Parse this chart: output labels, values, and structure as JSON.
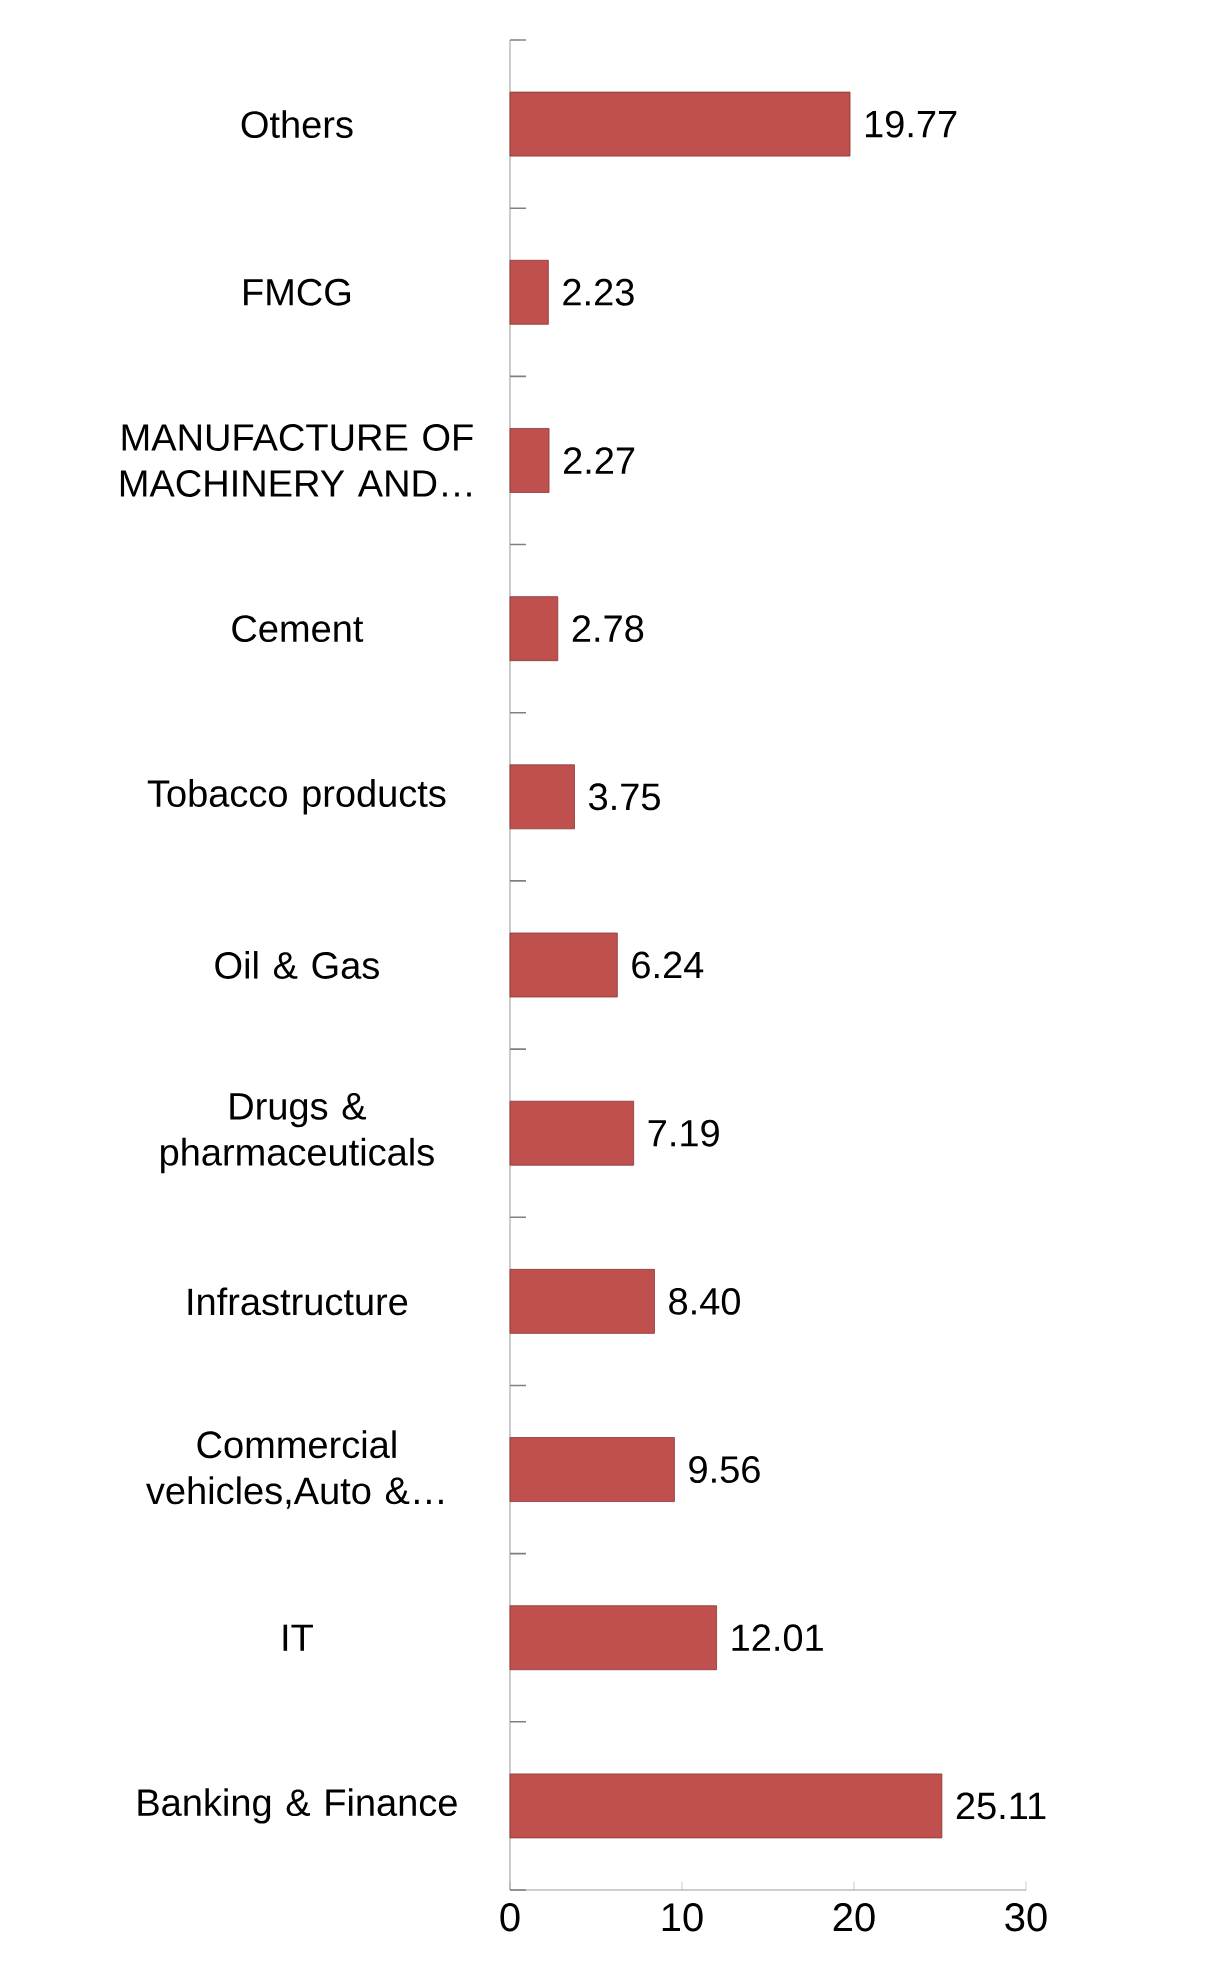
{
  "chart_data": {
    "type": "bar",
    "orientation": "horizontal",
    "categories": [
      "Others",
      "FMCG",
      "MANUFACTURE OF MACHINERY AND…",
      "Cement",
      "Tobacco products",
      "Oil & Gas",
      "Drugs & pharmaceuticals",
      "Infrastructure",
      "Commercial vehicles,Auto &…",
      "IT",
      "Banking & Finance"
    ],
    "values": [
      19.77,
      2.23,
      2.27,
      2.78,
      3.75,
      6.24,
      7.19,
      8.4,
      9.56,
      12.01,
      25.11
    ],
    "value_labels": [
      "19.77",
      "2.23",
      "2.27",
      "2.78",
      "3.75",
      "6.24",
      "7.19",
      "8.40",
      "9.56",
      "12.01",
      "25.11"
    ],
    "color": "#c0504d",
    "xlim": [
      0,
      30
    ],
    "xticks": [
      0,
      10,
      20,
      30
    ],
    "grid": false
  }
}
